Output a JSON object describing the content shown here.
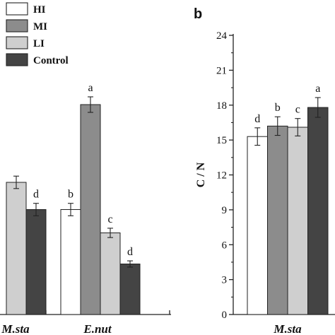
{
  "chart_data": [
    {
      "type": "bar",
      "panel": "",
      "categories": [
        "M.sta",
        "E.nut"
      ],
      "series": [
        {
          "name": "HI",
          "color": "#ffffff",
          "values": [
            null,
            0.85
          ]
        },
        {
          "name": "MI",
          "color": "#8c8c8c",
          "values": [
            null,
            2.2
          ]
        },
        {
          "name": "LI",
          "color": "#cfcfcf",
          "values": [
            1.2,
            0.55
          ]
        },
        {
          "name": "Control",
          "color": "#444444",
          "values": [
            0.85,
            0.15
          ]
        }
      ],
      "errors": [
        [
          null,
          0.08
        ],
        [
          null,
          0.1
        ],
        [
          0.08,
          0.06
        ],
        [
          0.08,
          0.04
        ]
      ],
      "letters": [
        [
          null,
          "b"
        ],
        [
          null,
          "a"
        ],
        [
          null,
          "c"
        ],
        [
          "d",
          "d"
        ]
      ],
      "ylim": [
        -0.5,
        3.0
      ],
      "legend": "top-left"
    },
    {
      "type": "bar",
      "panel": "b",
      "categories": [
        "M.sta"
      ],
      "ylabel": "C / N",
      "ylim": [
        0,
        24
      ],
      "yticks": [
        0,
        3,
        6,
        9,
        12,
        15,
        18,
        21,
        24
      ],
      "series": [
        {
          "name": "HI",
          "color": "#ffffff",
          "values": [
            15.3
          ]
        },
        {
          "name": "MI",
          "color": "#8c8c8c",
          "values": [
            16.2
          ]
        },
        {
          "name": "LI",
          "color": "#cfcfcf",
          "values": [
            16.1
          ]
        },
        {
          "name": "Control",
          "color": "#444444",
          "values": [
            17.8
          ]
        }
      ],
      "errors": [
        [
          0.75
        ],
        [
          0.8
        ],
        [
          0.75
        ],
        [
          0.85
        ]
      ],
      "letters": [
        [
          "d"
        ],
        [
          "b"
        ],
        [
          "c"
        ],
        [
          "a"
        ]
      ]
    }
  ]
}
